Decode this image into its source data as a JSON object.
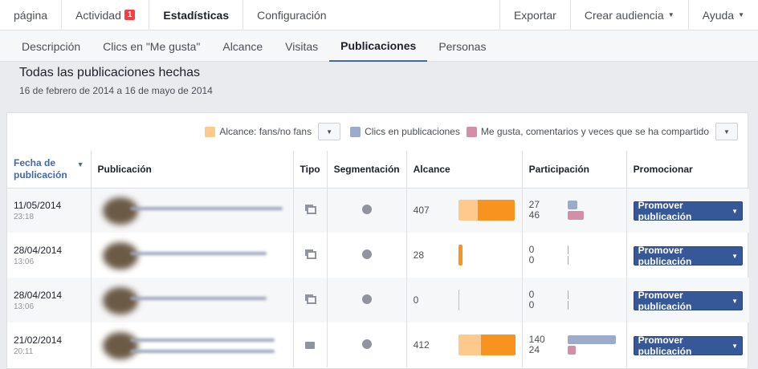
{
  "topnav": {
    "items": [
      {
        "label": "página"
      },
      {
        "label": "Actividad",
        "badge": "1"
      },
      {
        "label": "Estadísticas",
        "active": true
      },
      {
        "label": "Configuración"
      }
    ],
    "right": [
      {
        "label": "Exportar"
      },
      {
        "label": "Crear audiencia"
      },
      {
        "label": "Ayuda"
      }
    ]
  },
  "subnav": {
    "tabs": [
      "Descripción",
      "Clics en \"Me gusta\"",
      "Alcance",
      "Visitas",
      "Publicaciones",
      "Personas"
    ],
    "active": "Publicaciones"
  },
  "header": {
    "title": "Todas las publicaciones hechas",
    "date_range": "16 de febrero de 2014 a 16 de mayo de 2014"
  },
  "legend": {
    "reach": "Alcance: fans/no fans",
    "clicks": "Clics en publicaciones",
    "engagement": "Me gusta, comentarios y veces que se ha compartido"
  },
  "colors": {
    "fans": "#fdc98c",
    "nonfans": "#f7931e",
    "clicks": "#9cabc9",
    "engagement": "#d28fa7",
    "accent": "#4267b2",
    "button": "#365899"
  },
  "table": {
    "columns": [
      "Fecha de publicación",
      "Publicación",
      "Tipo",
      "Segmentación",
      "Alcance",
      "Participación",
      "Promocionar"
    ],
    "rows": [
      {
        "date": "11/05/2014",
        "time": "23:18",
        "type_icon": "album-icon",
        "targeting_icon": "globe-icon",
        "reach": "407",
        "fan_share": 0.34,
        "clicks": "27",
        "engagement": "46",
        "promote": "Promover publicación"
      },
      {
        "date": "28/04/2014",
        "time": "13:06",
        "type_icon": "album-icon",
        "targeting_icon": "globe-icon",
        "reach": "28",
        "fan_share": 0,
        "clicks": "0",
        "engagement": "0",
        "promote": "Promover publicación"
      },
      {
        "date": "28/04/2014",
        "time": "13:06",
        "type_icon": "album-icon",
        "targeting_icon": "globe-icon",
        "reach": "0",
        "fan_share": 0,
        "clicks": "0",
        "engagement": "0",
        "promote": "Promover publicación"
      },
      {
        "date": "21/02/2014",
        "time": "20:11",
        "type_icon": "status-icon",
        "targeting_icon": "globe-icon",
        "reach": "412",
        "fan_share": 0.39,
        "clicks": "140",
        "engagement": "24",
        "promote": "Promover publicación"
      }
    ]
  }
}
